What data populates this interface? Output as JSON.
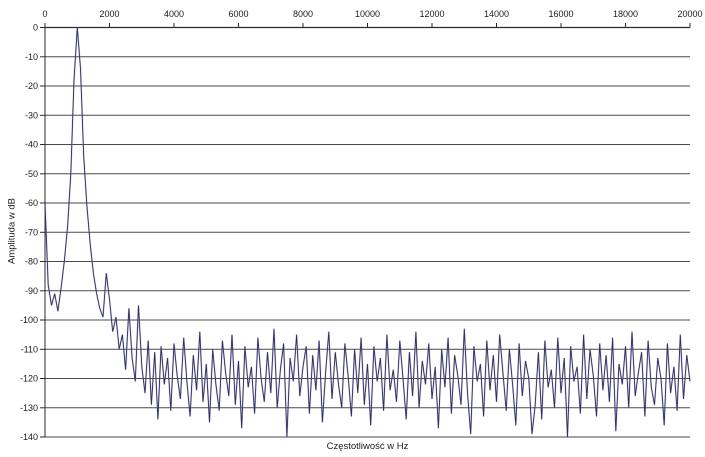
{
  "figure": {
    "background": "#ffffff"
  },
  "chart_data": {
    "type": "line",
    "title": "",
    "xlabel": "Częstotliwość w Hz",
    "ylabel": "Amplituda w dB",
    "xlim": [
      0,
      20000
    ],
    "ylim": [
      -140,
      0
    ],
    "x_ticks": [
      0,
      2000,
      4000,
      6000,
      8000,
      10000,
      12000,
      14000,
      16000,
      18000,
      20000
    ],
    "y_ticks": [
      0,
      -10,
      -20,
      -30,
      -40,
      -50,
      -60,
      -70,
      -80,
      -90,
      -100,
      -110,
      -120,
      -130,
      -140
    ],
    "grid": "horizontal",
    "legend": "none",
    "axis_position": "x-axis on top, y-axis on left",
    "line_color": "#2e2e63",
    "line_halo_color": "#9094b4",
    "grid_color": "#4a4a4a",
    "axis_color": "#2a2a2a",
    "label_color": "#1c1c1c",
    "peak": {
      "frequency_hz": 1000,
      "amplitude_db": 0
    },
    "harmonic_spike": {
      "frequency_hz": 1900,
      "amplitude_db": -84
    },
    "noise_floor_mean_db": -117,
    "x_step_hz": 100,
    "values_db": [
      -60,
      -88,
      -95,
      -91,
      -97,
      -89,
      -80,
      -68,
      -50,
      -18,
      0,
      -14,
      -44,
      -61,
      -74,
      -84,
      -91,
      -96,
      -99,
      -84,
      -93,
      -104,
      -99,
      -110,
      -105,
      -117,
      -96,
      -113,
      -121,
      -95,
      -116,
      -125,
      -107,
      -129,
      -111,
      -134,
      -109,
      -122,
      -113,
      -131,
      -108,
      -119,
      -127,
      -106,
      -121,
      -133,
      -112,
      -124,
      -104,
      -128,
      -115,
      -135,
      -110,
      -122,
      -131,
      -107,
      -118,
      -126,
      -105,
      -129,
      -114,
      -137,
      -109,
      -123,
      -116,
      -132,
      -106,
      -120,
      -128,
      -111,
      -125,
      -103,
      -130,
      -117,
      -108,
      -140,
      -113,
      -121,
      -105,
      -126,
      -116,
      -109,
      -132,
      -112,
      -124,
      -107,
      -135,
      -118,
      -104,
      -127,
      -111,
      -122,
      -130,
      -108,
      -119,
      -133,
      -110,
      -125,
      -106,
      -129,
      -115,
      -136,
      -109,
      -121,
      -113,
      -131,
      -105,
      -124,
      -117,
      -128,
      -107,
      -120,
      -134,
      -111,
      -126,
      -104,
      -130,
      -114,
      -122,
      -108,
      -127,
      -116,
      -137,
      -110,
      -123,
      -106,
      -132,
      -112,
      -119,
      -129,
      -103,
      -125,
      -139,
      -109,
      -121,
      -115,
      -133,
      -107,
      -124,
      -112,
      -128,
      -105,
      -118,
      -131,
      -110,
      -122,
      -136,
      -108,
      -126,
      -114,
      -120,
      -139,
      -129,
      -111,
      -134,
      -107,
      -123,
      -117,
      -130,
      -106,
      -125,
      -113,
      -140,
      -109,
      -121,
      -116,
      -132,
      -105,
      -127,
      -110,
      -119,
      -133,
      -108,
      -124,
      -112,
      -128,
      -106,
      -138,
      -115,
      -122,
      -109,
      -130,
      -104,
      -126,
      -118,
      -111,
      -133,
      -107,
      -123,
      -129,
      -113,
      -120,
      -136,
      -108,
      -125,
      -116,
      -131,
      -105,
      -127,
      -112,
      -121
    ]
  }
}
